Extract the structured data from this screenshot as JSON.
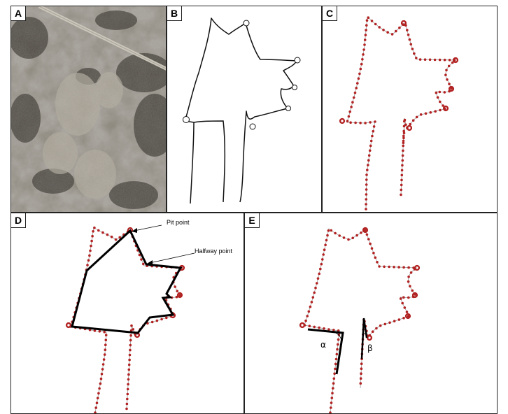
{
  "panels": {
    "a": {
      "label": "A"
    },
    "b": {
      "label": "B"
    },
    "c": {
      "label": "C"
    },
    "d": {
      "label": "D"
    },
    "e": {
      "label": "E"
    }
  },
  "annotations": {
    "pit_point": "Pit point",
    "halfway_point": "Halfway point",
    "alpha": "α",
    "beta": "β"
  },
  "colors": {
    "outline": "#111111",
    "sample_point": "#b22222",
    "guide_line": "#999999",
    "polygon": "#000000"
  }
}
